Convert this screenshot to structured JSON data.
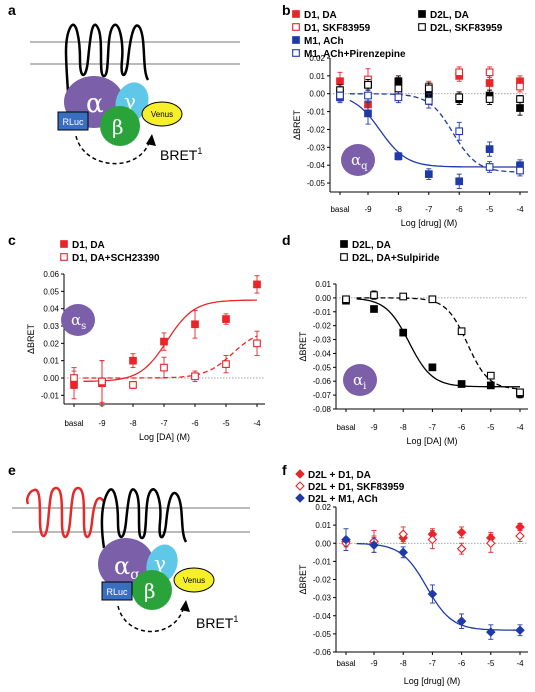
{
  "panel_letters": {
    "a": "a",
    "b": "b",
    "c": "c",
    "d": "d",
    "e": "e",
    "f": "f"
  },
  "diagram_a": {
    "alpha": "α",
    "beta": "β",
    "gamma": "γ",
    "venus": "Venus",
    "rluc": "RLuc",
    "bret": "BRET",
    "bret_sup": "1"
  },
  "diagram_e": {
    "alpha": "α",
    "alpha_sub": "q",
    "beta": "β",
    "gamma": "γ",
    "venus": "Venus",
    "rluc": "RLuc",
    "bret": "BRET",
    "bret_sup": "1"
  },
  "colors": {
    "red": "#e8262a",
    "blue": "#1f3aa8",
    "black": "#000000",
    "purple": "#7b5fa8",
    "cyan": "#5fc8e8",
    "green": "#29a33a",
    "yellow": "#f5f02a",
    "rluc": "#3a6fc0",
    "receptor_red": "#e32b2b"
  },
  "chart_data": [
    {
      "id": "b",
      "type": "scatter",
      "ylabel": "ΔBRET",
      "xlabel": "Log [drug] (M)",
      "ylim": [
        -0.055,
        0.02
      ],
      "yticks": [
        "0.02",
        "0.01",
        "0.00",
        "-0.01",
        "-0.02",
        "-0.03",
        "-0.04",
        "-0.05"
      ],
      "xticks": [
        "basal",
        "-9",
        "-8",
        "-7",
        "-6",
        "-5",
        "-4"
      ],
      "badge": "α",
      "badge_sub": "q",
      "series": [
        {
          "name": "D1, DA",
          "marker": "square-filled",
          "color": "#e8262a",
          "x": [
            "basal",
            "-9",
            "-8",
            "-7",
            "-6",
            "-5",
            "-4"
          ],
          "y": [
            0.007,
            -0.006,
            0.006,
            -0.002,
            0.01,
            0.006,
            0.007
          ]
        },
        {
          "name": "D1, SKF83959",
          "marker": "square-open",
          "color": "#e8262a",
          "x": [
            "basal",
            "-9",
            "-8",
            "-7",
            "-6",
            "-5",
            "-4"
          ],
          "y": [
            0.0,
            0.008,
            0.001,
            0.004,
            0.012,
            0.012,
            0.004
          ]
        },
        {
          "name": "D2L, DA",
          "marker": "square-filled",
          "color": "#000000",
          "x": [
            "basal",
            "-9",
            "-8",
            "-7",
            "-6",
            "-5",
            "-4"
          ],
          "y": [
            -0.001,
            0.005,
            0.007,
            0.0,
            -0.003,
            -0.001,
            -0.008
          ]
        },
        {
          "name": "D2L, SKF83959",
          "marker": "square-open",
          "color": "#000000",
          "x": [
            "basal",
            "-9",
            "-8",
            "-7",
            "-6",
            "-5",
            "-4"
          ],
          "y": [
            0.002,
            0.005,
            0.003,
            0.003,
            -0.002,
            -0.003,
            -0.003
          ]
        },
        {
          "name": "M1, ACh",
          "marker": "square-filled",
          "color": "#1f3aa8",
          "x": [
            "basal",
            "-9",
            "-8",
            "-7",
            "-6",
            "-5",
            "-4"
          ],
          "y": [
            -0.002,
            -0.011,
            -0.035,
            -0.045,
            -0.049,
            -0.031,
            -0.04
          ]
        },
        {
          "name": "M1, ACh+Pirenzepine",
          "marker": "square-open",
          "color": "#1f3aa8",
          "x": [
            "basal",
            "-9",
            "-8",
            "-7",
            "-6",
            "-5",
            "-4"
          ],
          "y": [
            -0.001,
            -0.001,
            -0.002,
            -0.004,
            -0.021,
            -0.041,
            -0.043
          ]
        }
      ]
    },
    {
      "id": "c",
      "type": "scatter",
      "ylabel": "ΔBRET",
      "xlabel": "Log [DA] (M)",
      "ylim": [
        -0.015,
        0.06
      ],
      "yticks": [
        "0.06",
        "0.05",
        "0.04",
        "0.03",
        "0.02",
        "0.01",
        "0.00",
        "-0.01"
      ],
      "xticks": [
        "basal",
        "-9",
        "-8",
        "-7",
        "-6",
        "-5",
        "-4"
      ],
      "badge": "α",
      "badge_sub": "s",
      "series": [
        {
          "name": "D1, DA",
          "marker": "square-filled",
          "color": "#e8262a",
          "x": [
            "basal",
            "-9",
            "-8",
            "-7",
            "-6",
            "-5",
            "-4"
          ],
          "y": [
            -0.004,
            -0.003,
            0.01,
            0.021,
            0.031,
            0.034,
            0.054
          ]
        },
        {
          "name": "D1, DA+SCH23390",
          "marker": "square-open",
          "color": "#e8262a",
          "x": [
            "basal",
            "-9",
            "-8",
            "-7",
            "-6",
            "-5",
            "-4"
          ],
          "y": [
            0.0,
            -0.002,
            -0.004,
            0.006,
            0.001,
            0.008,
            0.02
          ]
        }
      ]
    },
    {
      "id": "d",
      "type": "scatter",
      "ylabel": "ΔBRET",
      "xlabel": "Log [DA] (M)",
      "ylim": [
        -0.08,
        0.01
      ],
      "yticks": [
        "0.01",
        "0.00",
        "-0.01",
        "-0.02",
        "-0.03",
        "-0.04",
        "-0.05",
        "-0.06",
        "-0.07",
        "-0.08"
      ],
      "xticks": [
        "basal",
        "-9",
        "-8",
        "-7",
        "-6",
        "-5",
        "-4"
      ],
      "badge": "α",
      "badge_sub": "i",
      "series": [
        {
          "name": "D2L, DA",
          "marker": "square-filled",
          "color": "#000000",
          "x": [
            "basal",
            "-9",
            "-8",
            "-7",
            "-6",
            "-5",
            "-4"
          ],
          "y": [
            -0.002,
            -0.008,
            -0.025,
            -0.05,
            -0.062,
            -0.063,
            -0.069
          ]
        },
        {
          "name": "D2L, DA+Sulpiride",
          "marker": "square-open",
          "color": "#000000",
          "x": [
            "basal",
            "-9",
            "-8",
            "-7",
            "-6",
            "-5",
            "-4"
          ],
          "y": [
            -0.001,
            0.002,
            0.001,
            -0.001,
            -0.024,
            -0.056,
            -0.068
          ]
        }
      ]
    },
    {
      "id": "f",
      "type": "scatter",
      "ylabel": "ΔBRET",
      "xlabel": "Log [drug] (M)",
      "ylim": [
        -0.06,
        0.02
      ],
      "yticks": [
        "0.02",
        "0.01",
        "0.00",
        "-0.01",
        "-0.02",
        "-0.03",
        "-0.04",
        "-0.05",
        "-0.06"
      ],
      "xticks": [
        "basal",
        "-9",
        "-8",
        "-7",
        "-6",
        "-5",
        "-4"
      ],
      "series": [
        {
          "name": "D2L + D1, DA",
          "marker": "diamond-filled",
          "color": "#e8262a",
          "x": [
            "basal",
            "-9",
            "-8",
            "-7",
            "-6",
            "-5",
            "-4"
          ],
          "y": [
            0.001,
            0.001,
            0.003,
            0.005,
            0.006,
            0.003,
            0.009
          ]
        },
        {
          "name": "D2L + D1, SKF83959",
          "marker": "diamond-open",
          "color": "#e8262a",
          "x": [
            "basal",
            "-9",
            "-8",
            "-7",
            "-6",
            "-5",
            "-4"
          ],
          "y": [
            0.0,
            0.001,
            0.005,
            0.002,
            -0.003,
            0.0,
            0.004
          ]
        },
        {
          "name": "D2L + M1, ACh",
          "marker": "diamond-filled",
          "color": "#1f3aa8",
          "x": [
            "basal",
            "-9",
            "-8",
            "-7",
            "-6",
            "-5",
            "-4"
          ],
          "y": [
            0.002,
            -0.001,
            -0.005,
            -0.028,
            -0.043,
            -0.049,
            -0.048
          ]
        }
      ]
    }
  ]
}
